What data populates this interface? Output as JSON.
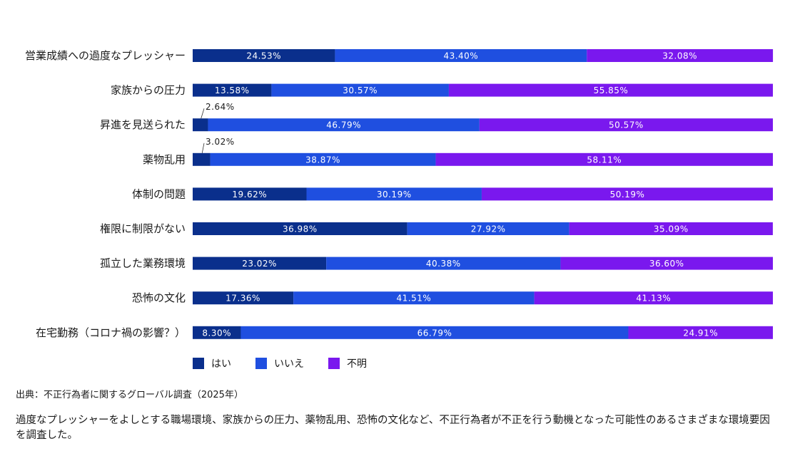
{
  "chart_data": {
    "type": "bar",
    "orientation": "horizontal",
    "stacked": true,
    "normalized_percent": true,
    "categories": [
      "営業成績への過度なプレッシャー",
      "家族からの圧力",
      "昇進を見送られた",
      "薬物乱用",
      "体制の問題",
      "権限に制限がない",
      "孤立した業務環境",
      "恐怖の文化",
      "在宅勤務（コロナ禍の影響？）"
    ],
    "series": [
      {
        "name": "はい",
        "color": "#0a2f8c",
        "values": [
          24.53,
          13.58,
          2.64,
          3.02,
          19.62,
          36.98,
          23.02,
          17.36,
          8.3
        ]
      },
      {
        "name": "いいえ",
        "color": "#1f4fe0",
        "values": [
          43.4,
          30.57,
          46.79,
          38.87,
          30.19,
          27.92,
          40.38,
          41.51,
          66.79
        ]
      },
      {
        "name": "不明",
        "color": "#7a18ee",
        "values": [
          32.08,
          55.85,
          50.57,
          58.11,
          50.19,
          35.09,
          36.6,
          41.13,
          24.91
        ]
      }
    ],
    "value_format": "percent_2dp",
    "xlim": [
      0,
      100
    ],
    "grid": false,
    "legend_position": "bottom-left",
    "title": "",
    "xlabel": "",
    "ylabel": ""
  },
  "legend": {
    "items": [
      {
        "label": "はい",
        "color": "#0a2f8c"
      },
      {
        "label": "いいえ",
        "color": "#1f4fe0"
      },
      {
        "label": "不明",
        "color": "#7a18ee"
      }
    ]
  },
  "source": "出典：不正行為者に関するグローバル調査（2025年）",
  "description": "過度なプレッシャーをよしとする職場環境、家族からの圧力、薬物乱用、恐怖の文化など、不正行為者が不正を行う動機となった可能性のあるさまざまな環境要因を調査した。"
}
